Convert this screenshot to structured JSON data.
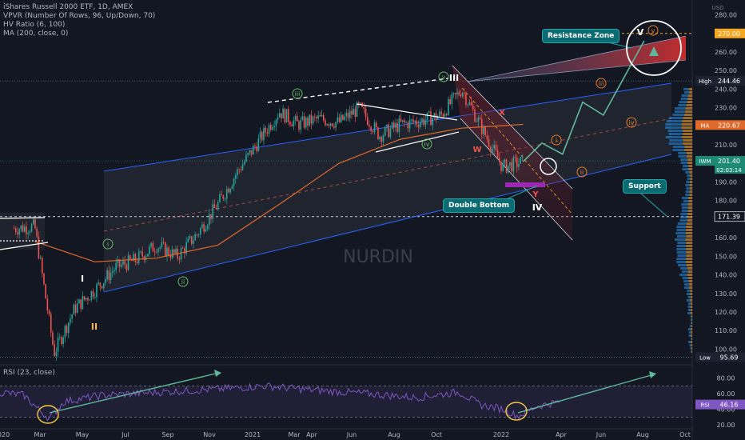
{
  "legend": {
    "symbol_line": "iShares Russell 2000 ETF, 1D, AMEX",
    "vpvr": "VPVR (Number Of Rows, 96, Up/Down, 70)",
    "hv": "HV Ratio (6, 100)",
    "ma": "MA (200, close, 0)"
  },
  "rsi_legend": "RSI (23, close)",
  "watermark": "NURDIN",
  "annotations": {
    "resistance_zone": "Resistance Zone",
    "double_bottom": "Double Bottom",
    "support": "Support"
  },
  "price_axis": {
    "currency": "USD",
    "ticks": [
      "280.00",
      "270.00",
      "260.00",
      "250.00",
      "240.00",
      "230.00",
      "220.00",
      "210.00",
      "200.00",
      "190.00",
      "180.00",
      "170.00",
      "160.00",
      "150.00",
      "140.00",
      "130.00",
      "120.00",
      "110.00",
      "100.00"
    ],
    "labels": [
      {
        "name": "High",
        "value": "244.46",
        "color": "#1e2230"
      },
      {
        "name": "",
        "value": "270.00",
        "color": "#f5a623"
      },
      {
        "name": "MA",
        "value": "220.67",
        "color": "#e06a2b"
      },
      {
        "name": "IWM",
        "value": "201.40",
        "sub": "02:03:14",
        "color": "#1d8a76"
      },
      {
        "name": "",
        "value": "171.39",
        "color": "#131722"
      },
      {
        "name": "Low",
        "value": "95.69",
        "color": "#1e2230"
      }
    ]
  },
  "rsi_axis": {
    "ticks": [
      "80.00",
      "60.00",
      "40.00",
      "20.00"
    ],
    "label": {
      "name": "RSI",
      "value": "46.16",
      "color": "#7e57c2"
    }
  },
  "time_axis": [
    "2020",
    "Mar",
    "May",
    "Jul",
    "Sep",
    "Nov",
    "2021",
    "Mar",
    "Apr",
    "Jun",
    "Aug",
    "Oct",
    "2022",
    "Apr",
    "Jun",
    "Aug",
    "Oct"
  ],
  "wave_labels": {
    "main": [
      "I",
      "II",
      "III",
      "IV",
      "V"
    ],
    "green_circled": [
      "i",
      "ii",
      "iii",
      "iv",
      "v"
    ],
    "orange_circled": [
      "i",
      "ii",
      "iii",
      "iv",
      "v"
    ],
    "corrective": [
      "W",
      "X",
      "Y"
    ]
  },
  "chart_data": {
    "type": "candlestick",
    "symbol": "IWM",
    "timeframe": "1D",
    "price_range": [
      92,
      288
    ],
    "last_price": 201.4,
    "high": 244.46,
    "low": 95.69,
    "ma200_last": 220.67,
    "support_level": 171.39,
    "target_level": 270.0,
    "price_path": [
      {
        "date": "2020-01",
        "price": 165
      },
      {
        "date": "2020-02",
        "price": 166
      },
      {
        "date": "2020-03",
        "price": 98
      },
      {
        "date": "2020-04",
        "price": 122
      },
      {
        "date": "2020-05",
        "price": 132
      },
      {
        "date": "2020-06",
        "price": 144
      },
      {
        "date": "2020-07",
        "price": 148
      },
      {
        "date": "2020-08",
        "price": 156
      },
      {
        "date": "2020-09",
        "price": 150
      },
      {
        "date": "2020-10",
        "price": 162
      },
      {
        "date": "2020-11",
        "price": 178
      },
      {
        "date": "2020-12",
        "price": 196
      },
      {
        "date": "2021-01",
        "price": 212
      },
      {
        "date": "2021-02",
        "price": 228
      },
      {
        "date": "2021-03",
        "price": 221
      },
      {
        "date": "2021-04",
        "price": 224
      },
      {
        "date": "2021-05",
        "price": 222
      },
      {
        "date": "2021-06",
        "price": 230
      },
      {
        "date": "2021-07",
        "price": 215
      },
      {
        "date": "2021-08",
        "price": 221
      },
      {
        "date": "2021-09",
        "price": 223
      },
      {
        "date": "2021-10",
        "price": 226
      },
      {
        "date": "2021-11",
        "price": 240
      },
      {
        "date": "2021-12",
        "price": 219
      },
      {
        "date": "2022-01",
        "price": 198
      },
      {
        "date": "2022-02",
        "price": 201
      }
    ],
    "ma200_path": [
      {
        "date": "2020-02",
        "price": 158
      },
      {
        "date": "2020-05",
        "price": 147
      },
      {
        "date": "2020-08",
        "price": 149
      },
      {
        "date": "2020-11",
        "price": 156
      },
      {
        "date": "2021-02",
        "price": 178
      },
      {
        "date": "2021-05",
        "price": 200
      },
      {
        "date": "2021-08",
        "price": 213
      },
      {
        "date": "2021-11",
        "price": 219
      },
      {
        "date": "2022-02",
        "price": 221
      }
    ],
    "projection_path": [
      {
        "date": "2022-02",
        "price": 201
      },
      {
        "date": "2022-03",
        "price": 211
      },
      {
        "date": "2022-04",
        "price": 205
      },
      {
        "date": "2022-05",
        "price": 233
      },
      {
        "date": "2022-06",
        "price": 226
      },
      {
        "date": "2022-08",
        "price": 266
      }
    ],
    "rsi": {
      "name": "RSI (23, close)",
      "range": [
        15,
        95
      ],
      "last": 46.16,
      "levels": [
        70,
        30
      ]
    }
  }
}
